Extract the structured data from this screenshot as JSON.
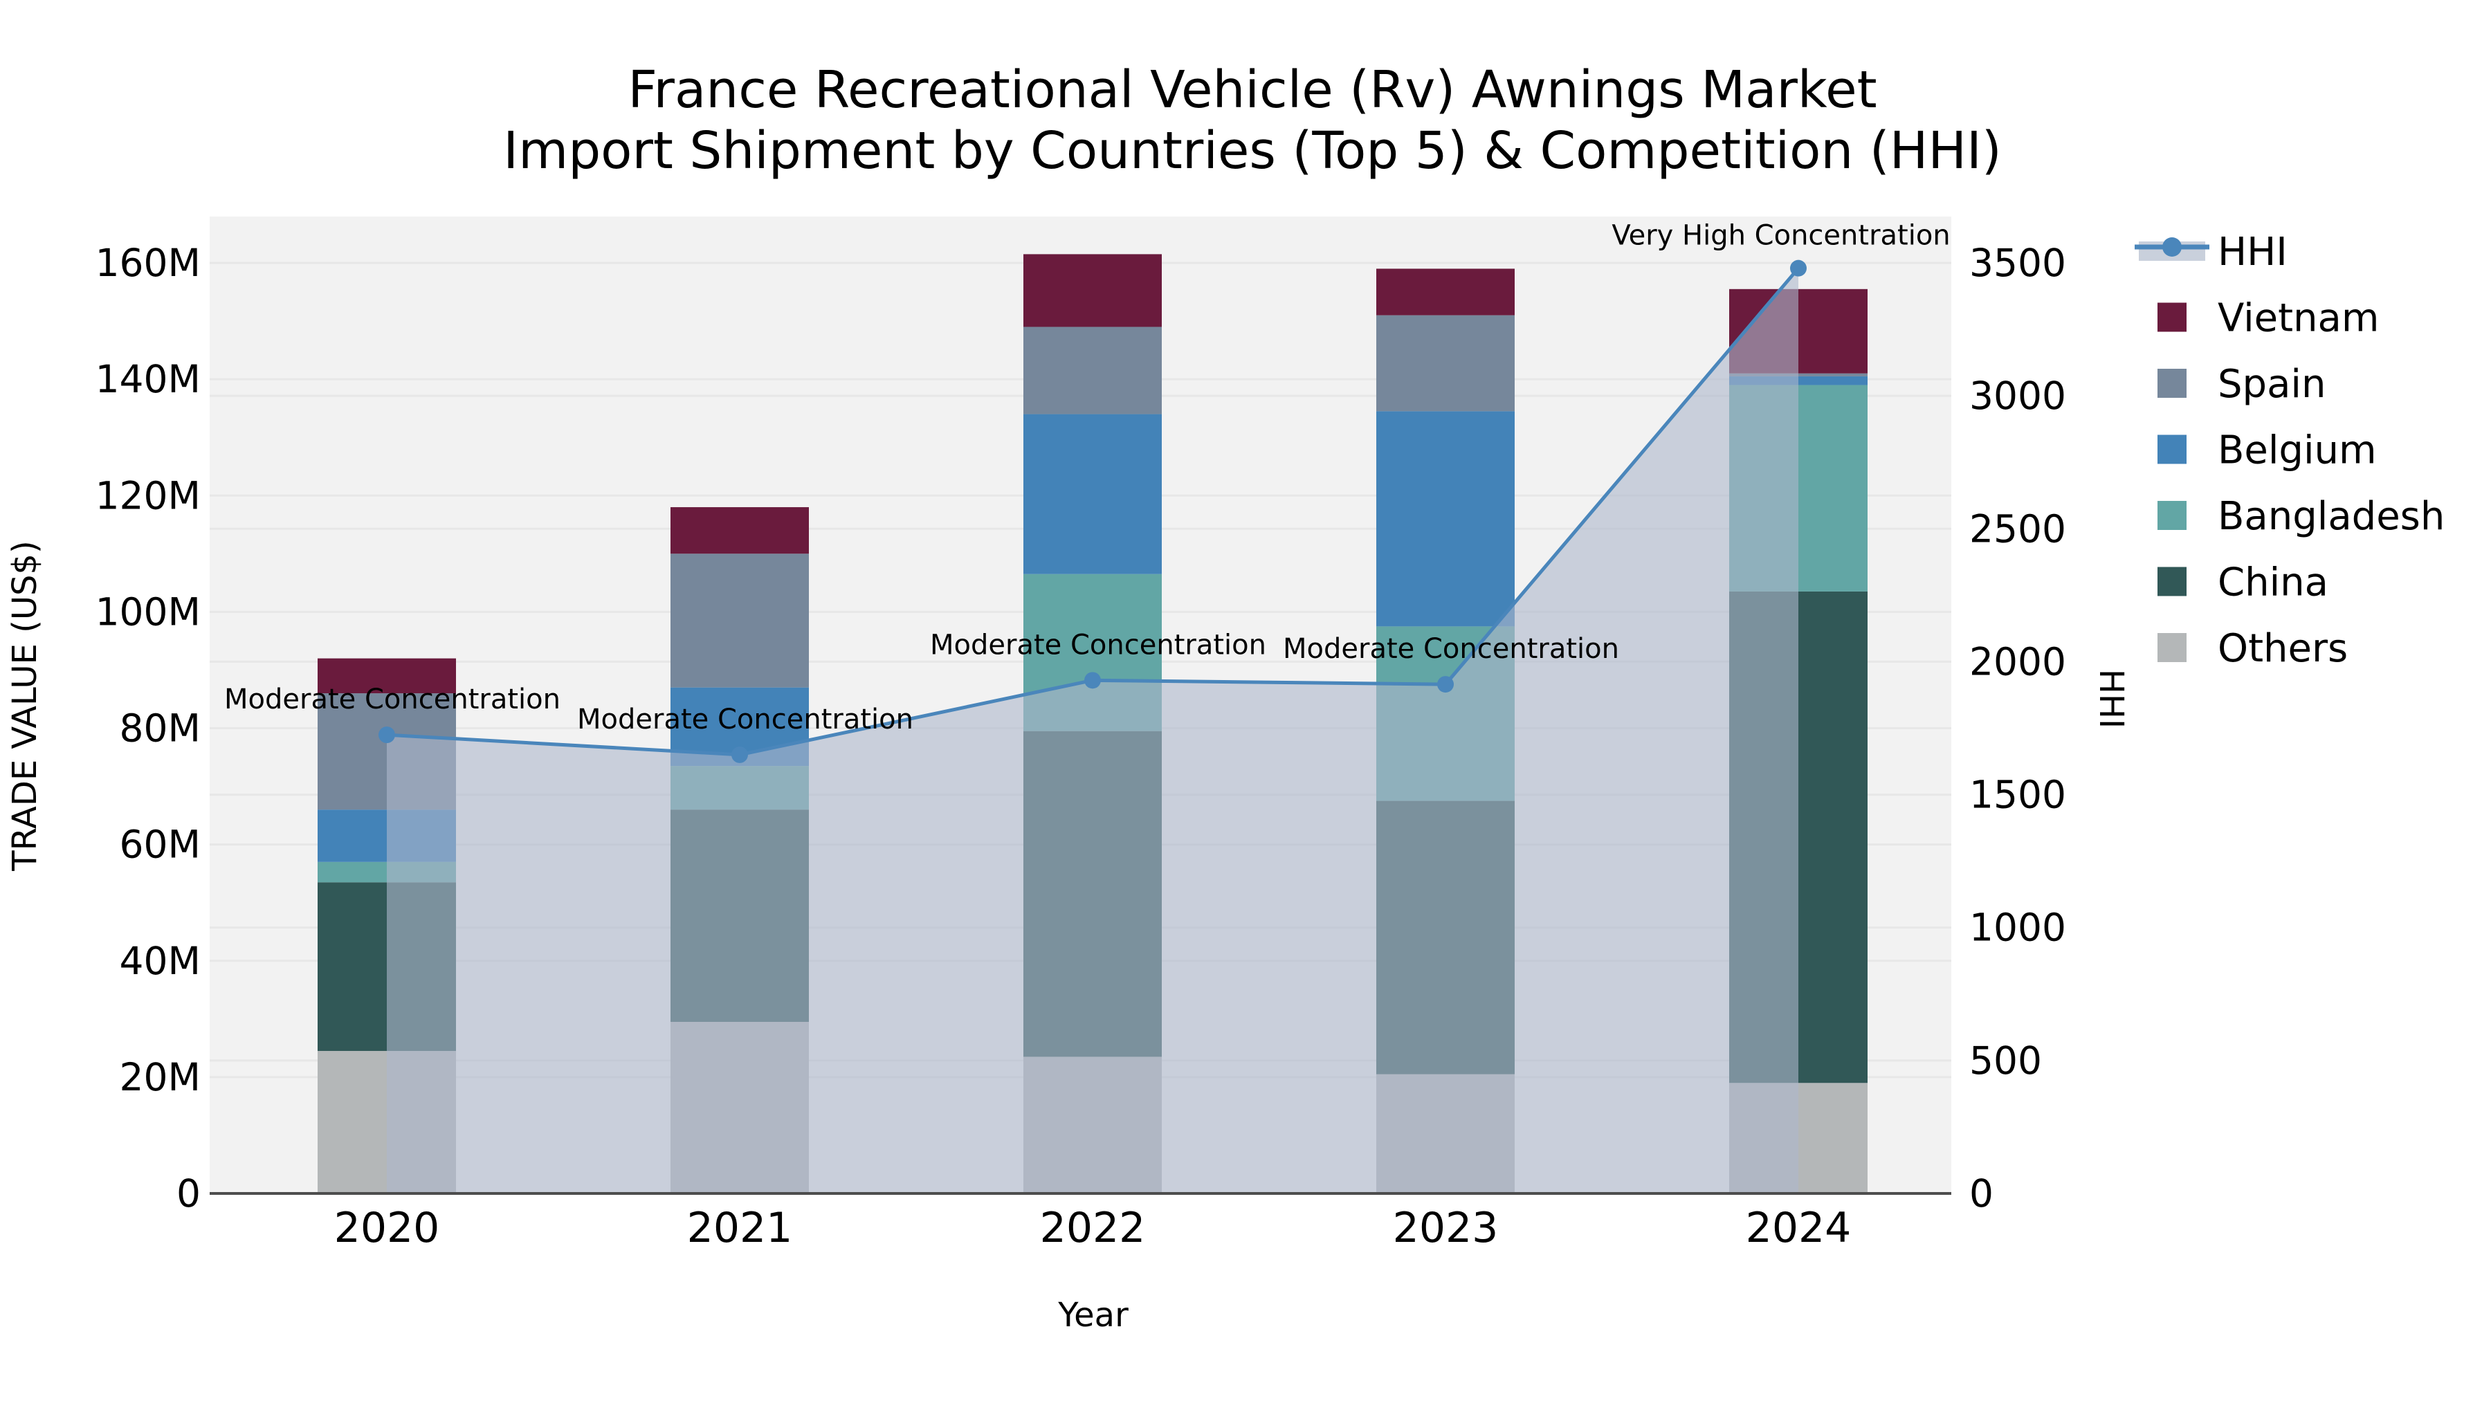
{
  "title": {
    "line1": "France Recreational Vehicle (Rv) Awnings Market",
    "line2": "Import Shipment by Countries (Top 5) & Competition (HHI)"
  },
  "axes": {
    "x_title": "Year",
    "y_left_title": "TRADE VALUE (US$)",
    "y_right_title": "HHI"
  },
  "legend": {
    "items": [
      {
        "label": "HHI",
        "type": "line",
        "color": "#4a86bb",
        "band_color": "#c9d0dc"
      },
      {
        "label": "Vietnam",
        "type": "swatch",
        "color": "#6a1b3d"
      },
      {
        "label": "Spain",
        "type": "swatch",
        "color": "#76879b"
      },
      {
        "label": "Belgium",
        "type": "swatch",
        "color": "#4383b8"
      },
      {
        "label": "Bangladesh",
        "type": "swatch",
        "color": "#62a6a5"
      },
      {
        "label": "China",
        "type": "swatch",
        "color": "#315857"
      },
      {
        "label": "Others",
        "type": "swatch",
        "color": "#b4b7b8"
      }
    ]
  },
  "chart_data": {
    "type": "bar",
    "subtype": "stacked-bars-with-line-overlay",
    "title": "France Recreational Vehicle (Rv) Awnings Market — Import Shipment by Countries (Top 5) & Competition (HHI)",
    "categories": [
      "2020",
      "2021",
      "2022",
      "2023",
      "2024"
    ],
    "stack_order_bottom_to_top": [
      "Others",
      "China",
      "Bangladesh",
      "Belgium",
      "Spain",
      "Vietnam"
    ],
    "series": [
      {
        "name": "Others",
        "color": "#b4b7b8",
        "values": [
          24.5,
          29.5,
          23.5,
          20.5,
          19
        ]
      },
      {
        "name": "China",
        "color": "#315857",
        "values": [
          29,
          36.5,
          56,
          47,
          84.5
        ]
      },
      {
        "name": "Bangladesh",
        "color": "#62a6a5",
        "values": [
          3.5,
          7.5,
          27,
          30,
          35.5
        ]
      },
      {
        "name": "Belgium",
        "color": "#4383b8",
        "values": [
          9,
          13.5,
          27.5,
          37,
          1.5
        ]
      },
      {
        "name": "Spain",
        "color": "#76879b",
        "values": [
          20,
          23,
          15,
          16.5,
          0.5
        ]
      },
      {
        "name": "Vietnam",
        "color": "#6a1b3d",
        "values": [
          6,
          8,
          12.5,
          8,
          14.5
        ]
      }
    ],
    "bar_totals_millions": [
      92,
      118,
      161.5,
      159,
      155.5
    ],
    "line_series": {
      "name": "HHI",
      "color": "#4a86bb",
      "area_fill": "rgba(173,184,203,0.6)",
      "values": [
        1725,
        1650,
        1930,
        1915,
        3480
      ]
    },
    "annotations": [
      {
        "text": "Moderate Concentration",
        "category": "2020"
      },
      {
        "text": "Moderate Concentration",
        "category": "2021"
      },
      {
        "text": "Moderate Concentration",
        "category": "2022"
      },
      {
        "text": "Moderate Concentration",
        "category": "2023"
      },
      {
        "text": "Very High Concentration",
        "category": "2024"
      }
    ],
    "y_left": {
      "label": "TRADE VALUE (US$)",
      "min": 0,
      "max": 160,
      "unit": "M",
      "tick_values": [
        0,
        20,
        40,
        60,
        80,
        100,
        120,
        140,
        160
      ],
      "tick_labels": [
        "0",
        "20M",
        "40M",
        "60M",
        "80M",
        "100M",
        "120M",
        "140M",
        "160M"
      ]
    },
    "y_right": {
      "label": "HHI",
      "min": 0,
      "max": 3500,
      "tick_values": [
        0,
        500,
        1000,
        1500,
        2000,
        2500,
        3000,
        3500
      ],
      "tick_labels": [
        "0",
        "500",
        "1000",
        "1500",
        "2000",
        "2500",
        "3000",
        "3500"
      ]
    },
    "xlabel": "Year",
    "grid": true,
    "legend_position": "right",
    "plot_background": "#f2f2f2"
  }
}
